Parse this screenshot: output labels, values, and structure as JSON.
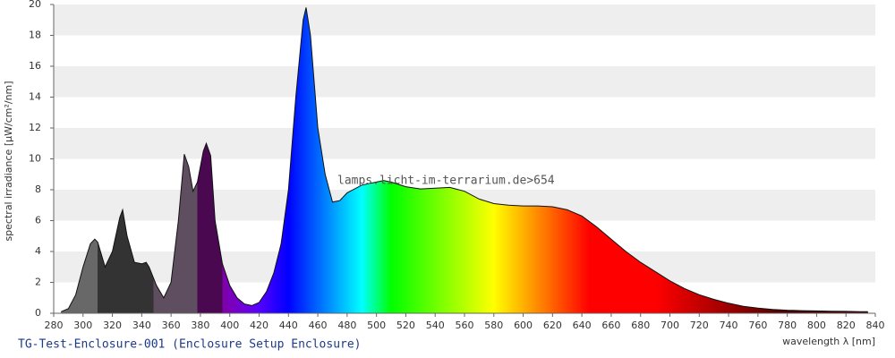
{
  "chart_data": {
    "type": "spectrum",
    "title": "TG-Test-Enclosure-001 (Enclosure Setup Enclosure)",
    "watermark": "lamps.licht-im-terrarium.de>654",
    "x_label": "wavelength λ [nm]",
    "y_label": "spectral irradiance [µW/cm²/nm]",
    "xlim": [
      280,
      840
    ],
    "ylim": [
      0,
      20
    ],
    "xticks": [
      280,
      300,
      320,
      340,
      360,
      380,
      400,
      420,
      440,
      460,
      480,
      500,
      520,
      540,
      560,
      580,
      600,
      620,
      640,
      660,
      680,
      700,
      720,
      740,
      760,
      780,
      800,
      820,
      840
    ],
    "yticks": [
      0,
      2,
      4,
      6,
      8,
      10,
      12,
      14,
      16,
      18,
      20
    ],
    "band_shading": true,
    "band_color": "#eeeeee",
    "line_color": "#111111",
    "color_bands": [
      {
        "from": 280,
        "to": 310,
        "color": "#686868"
      },
      {
        "from": 310,
        "to": 348,
        "color": "#333333"
      },
      {
        "from": 348,
        "to": 378,
        "color": "#5e4e60"
      },
      {
        "from": 378,
        "to": 395,
        "color": "#4a0850"
      }
    ],
    "x": [
      285,
      290,
      295,
      300,
      305,
      308,
      310,
      315,
      320,
      325,
      327,
      330,
      335,
      340,
      343,
      345,
      350,
      355,
      360,
      365,
      369,
      372,
      375,
      378,
      382,
      384,
      387,
      390,
      395,
      400,
      405,
      410,
      415,
      420,
      425,
      430,
      435,
      440,
      445,
      450,
      452,
      455,
      460,
      465,
      470,
      475,
      480,
      490,
      500,
      505,
      510,
      520,
      530,
      540,
      550,
      560,
      570,
      580,
      590,
      600,
      610,
      620,
      630,
      640,
      650,
      660,
      670,
      680,
      690,
      700,
      710,
      720,
      730,
      740,
      750,
      760,
      770,
      780,
      790,
      800,
      810,
      820,
      830,
      835
    ],
    "values": [
      0.1,
      0.3,
      1.2,
      3.0,
      4.5,
      4.8,
      4.6,
      3.0,
      4.0,
      6.2,
      6.7,
      5.0,
      3.3,
      3.2,
      3.3,
      3.0,
      1.8,
      1.0,
      2.0,
      6.0,
      10.3,
      9.5,
      7.9,
      8.5,
      10.5,
      11.0,
      10.2,
      6.0,
      3.2,
      1.8,
      1.0,
      0.6,
      0.5,
      0.7,
      1.4,
      2.6,
      4.5,
      8.0,
      14.0,
      19.0,
      19.8,
      18.0,
      12.0,
      9.0,
      7.2,
      7.3,
      7.8,
      8.3,
      8.5,
      8.6,
      8.5,
      8.2,
      8.05,
      8.1,
      8.15,
      7.9,
      7.4,
      7.1,
      7.0,
      6.95,
      6.95,
      6.9,
      6.7,
      6.3,
      5.6,
      4.8,
      4.0,
      3.3,
      2.7,
      2.1,
      1.6,
      1.2,
      0.9,
      0.65,
      0.45,
      0.33,
      0.25,
      0.2,
      0.17,
      0.15,
      0.13,
      0.12,
      0.1,
      0.1
    ]
  }
}
